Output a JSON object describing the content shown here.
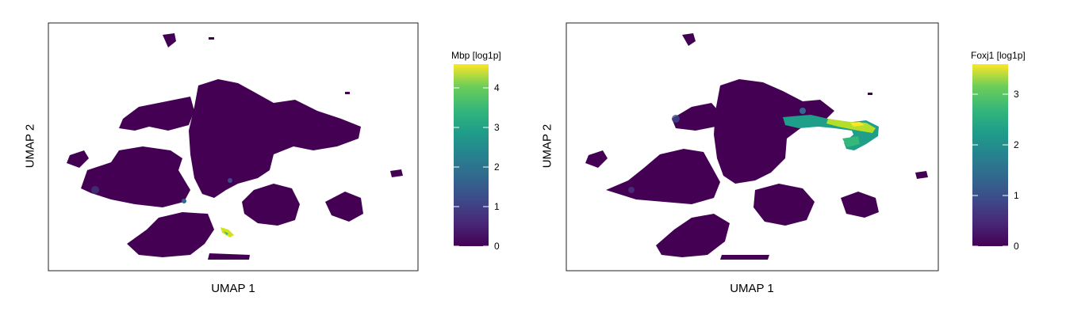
{
  "chart_data": [
    {
      "type": "heatmap",
      "subtype": "hexbin-umap",
      "xlabel": "UMAP 1",
      "ylabel": "UMAP 2",
      "colorbar": {
        "title": "Mbp [log1p]",
        "range": [
          0,
          4.6
        ],
        "ticks": [
          "0",
          "1",
          "2",
          "3",
          "4"
        ],
        "tick_values": [
          0,
          1,
          2,
          3,
          4
        ]
      },
      "colormap": "viridis",
      "axes_ticks_shown": false,
      "hotspots": [
        {
          "x": 0.49,
          "y": 0.15,
          "value": 4.3
        },
        {
          "x": 0.48,
          "y": 0.17,
          "value": 3.5
        },
        {
          "x": 0.5,
          "y": 0.14,
          "value": 4.0
        },
        {
          "x": 0.12,
          "y": 0.3,
          "value": 0.8
        },
        {
          "x": 0.2,
          "y": 0.32,
          "value": 0.7
        },
        {
          "x": 0.38,
          "y": 0.33,
          "value": 1.5
        }
      ]
    },
    {
      "type": "heatmap",
      "subtype": "hexbin-umap",
      "xlabel": "UMAP 1",
      "ylabel": "UMAP 2",
      "colorbar": {
        "title": "Foxj1 [log1p]",
        "range": [
          0,
          3.6
        ],
        "ticks": [
          "0",
          "1",
          "2",
          "3"
        ],
        "tick_values": [
          0,
          1,
          2,
          3
        ]
      },
      "colormap": "viridis",
      "axes_ticks_shown": false,
      "hotspots": [
        {
          "x": 0.78,
          "y": 0.58,
          "value": 2.2
        },
        {
          "x": 0.8,
          "y": 0.57,
          "value": 2.8
        },
        {
          "x": 0.83,
          "y": 0.59,
          "value": 3.3
        },
        {
          "x": 0.85,
          "y": 0.57,
          "value": 3.0
        },
        {
          "x": 0.86,
          "y": 0.55,
          "value": 2.6
        },
        {
          "x": 0.83,
          "y": 0.52,
          "value": 2.1
        },
        {
          "x": 0.79,
          "y": 0.51,
          "value": 1.8
        },
        {
          "x": 0.74,
          "y": 0.6,
          "value": 1.2
        },
        {
          "x": 0.66,
          "y": 0.59,
          "value": 1.0
        },
        {
          "x": 0.2,
          "y": 0.62,
          "value": 0.7
        }
      ]
    }
  ]
}
